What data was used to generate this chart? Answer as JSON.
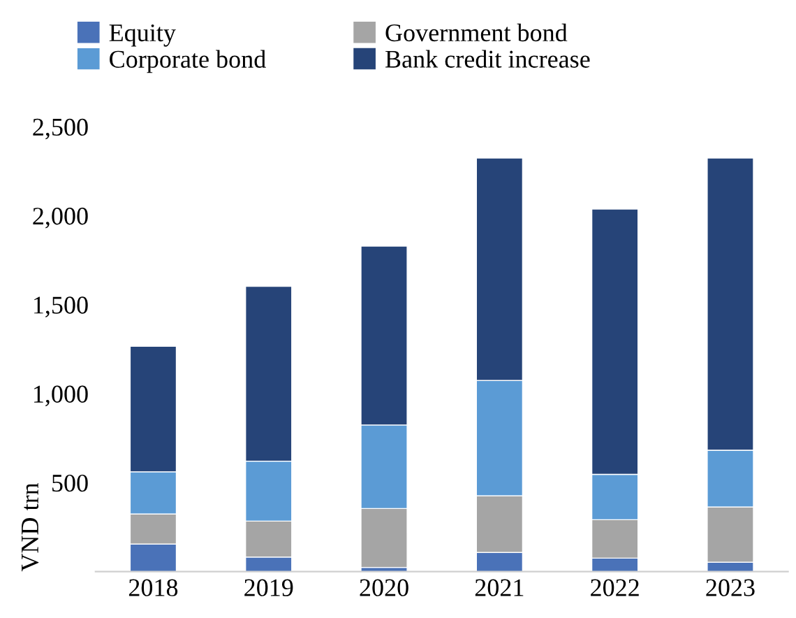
{
  "chart_data": {
    "type": "bar",
    "stacked": true,
    "ylabel": "VND trn",
    "categories": [
      "2018",
      "2019",
      "2020",
      "2021",
      "2022",
      "2023"
    ],
    "series": [
      {
        "name": "Equity",
        "color": "#4a72b8",
        "values": [
          155,
          82,
          24,
          108,
          76,
          53
        ]
      },
      {
        "name": "Government bond",
        "color": "#a5a5a5",
        "values": [
          169,
          202,
          331,
          318,
          216,
          310
        ]
      },
      {
        "name": "Corporate bond",
        "color": "#5b9bd5",
        "values": [
          237,
          337,
          469,
          648,
          255,
          319
        ]
      },
      {
        "name": "Bank credit increase",
        "color": "#264478",
        "values": [
          705,
          982,
          1005,
          1250,
          1490,
          1642
        ]
      }
    ],
    "ylim": [
      0,
      2500
    ],
    "yticks": [
      500,
      {
        "value": 1000,
        "label": "1,000"
      },
      {
        "value": 1500,
        "label": "1,500"
      },
      {
        "value": 2000,
        "label": "2,000"
      },
      {
        "value": 2500,
        "label": "2,500"
      }
    ],
    "grid": false,
    "legend": "top"
  }
}
